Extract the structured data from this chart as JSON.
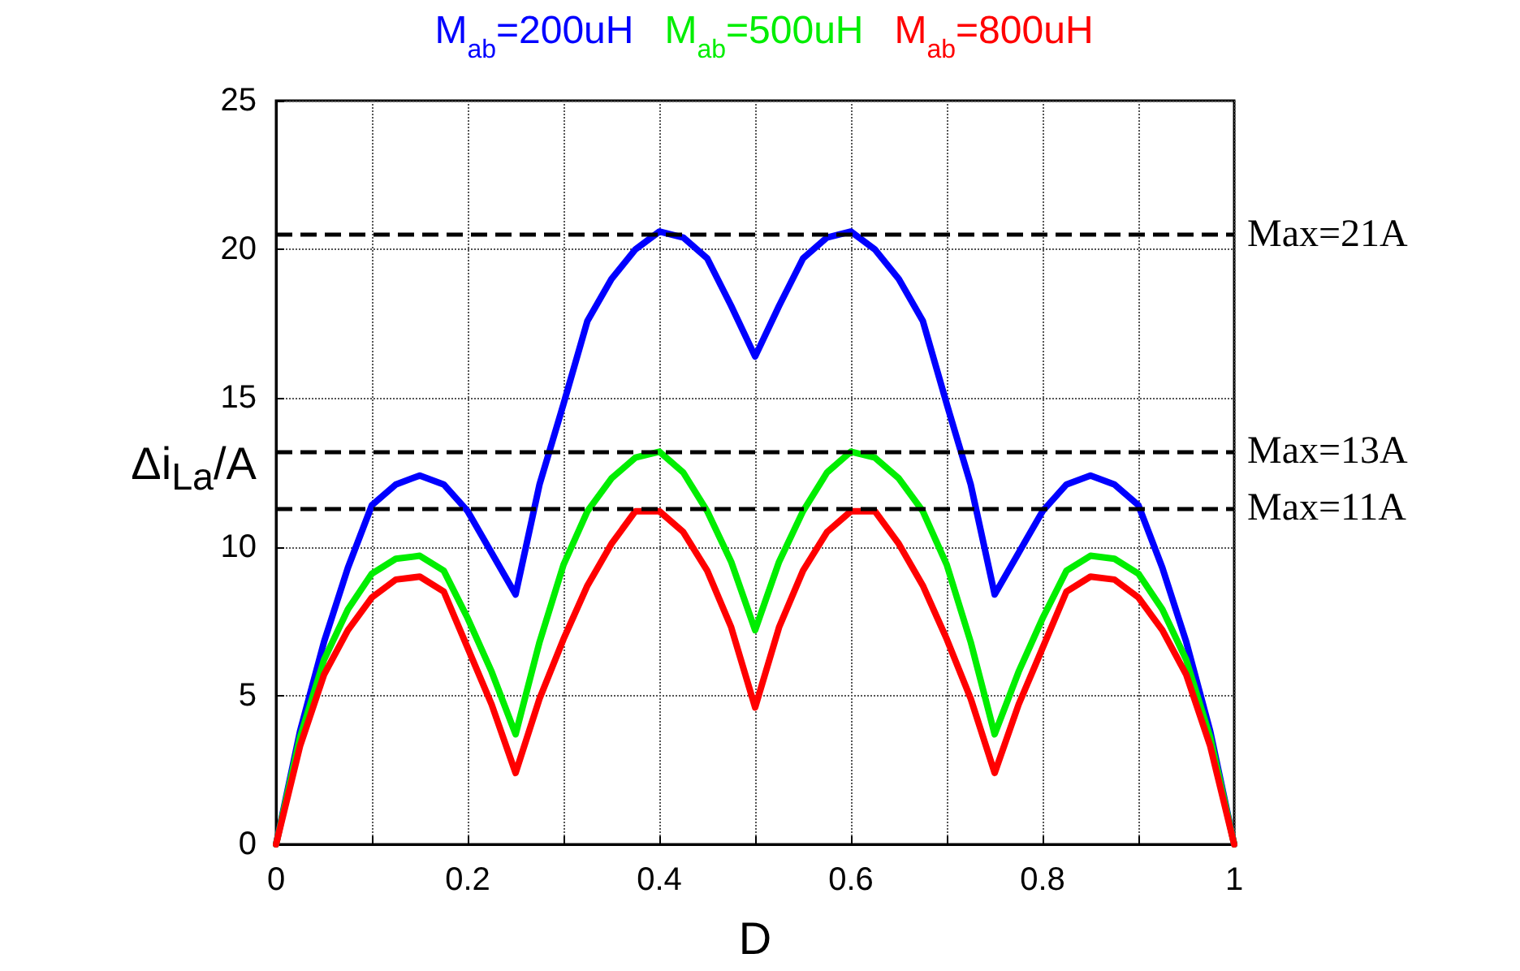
{
  "chart_data": {
    "type": "line",
    "xlabel": "D",
    "ylabel": "Δi$_{La}$/A",
    "x": [
      0,
      0.025,
      0.05,
      0.075,
      0.1,
      0.125,
      0.15,
      0.175,
      0.2,
      0.225,
      0.25,
      0.275,
      0.3,
      0.325,
      0.35,
      0.375,
      0.4,
      0.425,
      0.45,
      0.475,
      0.5,
      0.525,
      0.55,
      0.575,
      0.6,
      0.625,
      0.65,
      0.675,
      0.7,
      0.725,
      0.75,
      0.775,
      0.8,
      0.825,
      0.85,
      0.875,
      0.9,
      0.925,
      0.95,
      0.975,
      1
    ],
    "series": [
      {
        "name": "M$_{ab}$=200uH",
        "color": "#0000ff",
        "values": [
          0,
          3.8,
          6.8,
          9.3,
          11.4,
          12.1,
          12.4,
          12.1,
          11.2,
          9.8,
          8.4,
          12.1,
          14.8,
          17.6,
          19.0,
          20.0,
          20.6,
          20.4,
          19.7,
          18.1,
          16.4,
          18.1,
          19.7,
          20.4,
          20.6,
          20.0,
          19.0,
          17.6,
          14.8,
          12.1,
          8.4,
          9.8,
          11.2,
          12.1,
          12.4,
          12.1,
          11.4,
          9.3,
          6.8,
          3.8,
          0
        ]
      },
      {
        "name": "M$_{ab}$=500uH",
        "color": "#00ee00",
        "values": [
          0,
          3.6,
          6.2,
          7.9,
          9.1,
          9.6,
          9.7,
          9.2,
          7.6,
          5.8,
          3.7,
          6.8,
          9.4,
          11.2,
          12.3,
          13.0,
          13.2,
          12.5,
          11.2,
          9.5,
          7.2,
          9.5,
          11.2,
          12.5,
          13.2,
          13.0,
          12.3,
          11.2,
          9.4,
          6.8,
          3.7,
          5.8,
          7.6,
          9.2,
          9.7,
          9.6,
          9.1,
          7.9,
          6.2,
          3.6,
          0
        ]
      },
      {
        "name": "M$_{ab}$=800uH",
        "color": "#ff0000",
        "values": [
          0,
          3.3,
          5.7,
          7.2,
          8.3,
          8.9,
          9.0,
          8.5,
          6.6,
          4.7,
          2.4,
          4.9,
          6.9,
          8.7,
          10.1,
          11.2,
          11.2,
          10.5,
          9.2,
          7.3,
          4.6,
          7.3,
          9.2,
          10.5,
          11.2,
          11.2,
          10.1,
          8.7,
          6.9,
          4.9,
          2.4,
          4.7,
          6.6,
          8.5,
          9.0,
          8.9,
          8.3,
          7.2,
          5.7,
          3.3,
          0
        ]
      }
    ],
    "xlim": [
      0,
      1
    ],
    "xticks": [
      0,
      {
        "value": 0.1,
        "label": null
      },
      0.2,
      {
        "value": 0.3,
        "label": null
      },
      0.4,
      {
        "value": 0.5,
        "label": null
      },
      0.6,
      {
        "value": 0.7,
        "label": null
      },
      0.8,
      {
        "value": 0.9,
        "label": null
      },
      1
    ],
    "ylim": [
      0,
      25
    ],
    "yticks": [
      0,
      5,
      10,
      15,
      20,
      25
    ],
    "ref_lines": [
      {
        "axis": "y",
        "value": 20.5,
        "label": "Max=21A",
        "color": "#000000",
        "line_style": "dashed"
      },
      {
        "axis": "y",
        "value": 13.2,
        "label": "Max=13A",
        "color": "#000000",
        "line_style": "dashed"
      },
      {
        "axis": "y",
        "value": 11.3,
        "label": "Max=11A",
        "color": "#000000",
        "line_style": "dashed"
      }
    ],
    "grid": true,
    "legend": "top",
    "marker": "none",
    "line_style": "solid"
  }
}
